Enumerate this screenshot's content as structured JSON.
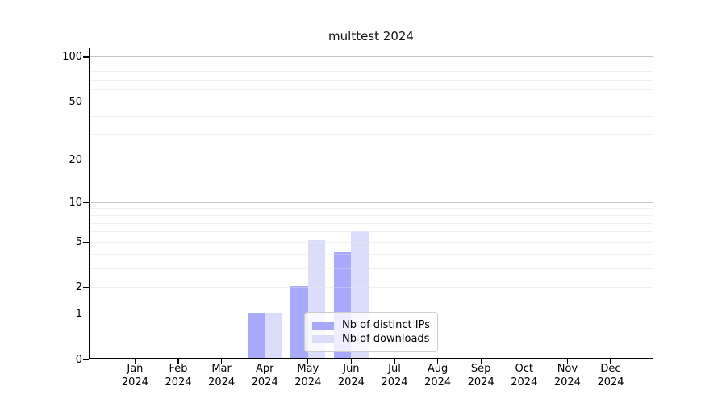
{
  "chart_data": {
    "type": "bar",
    "title": "multtest 2024",
    "categories": [
      "Jan",
      "Feb",
      "Mar",
      "Apr",
      "May",
      "Jun",
      "Jul",
      "Aug",
      "Sep",
      "Oct",
      "Nov",
      "Dec"
    ],
    "x_year_label": "2024",
    "series": [
      {
        "name": "Nb of distinct IPs",
        "color": "#a9a9fb",
        "values": [
          0,
          0,
          0,
          1,
          2,
          4,
          0,
          0,
          0,
          0,
          0,
          0
        ]
      },
      {
        "name": "Nb of downloads",
        "color": "#dcdcfb",
        "values": [
          0,
          0,
          0,
          1,
          5,
          6,
          0,
          0,
          0,
          0,
          0,
          0
        ]
      }
    ],
    "y_scale": "log10(1+x)",
    "y_ticks": [
      0,
      1,
      2,
      5,
      10,
      20,
      50,
      100
    ],
    "ylim": [
      0,
      115
    ],
    "grid": true,
    "gridlines_major": [
      1,
      10,
      100
    ],
    "gridlines_minor": [
      2,
      3,
      4,
      5,
      6,
      7,
      8,
      9,
      20,
      30,
      40,
      50,
      60,
      70,
      80,
      90
    ],
    "legend_position": "lower center"
  },
  "colors": {
    "grid_minor": "#f0f0f0",
    "grid_major": "#c4c4c4",
    "axis": "#000000",
    "background": "#ffffff"
  }
}
